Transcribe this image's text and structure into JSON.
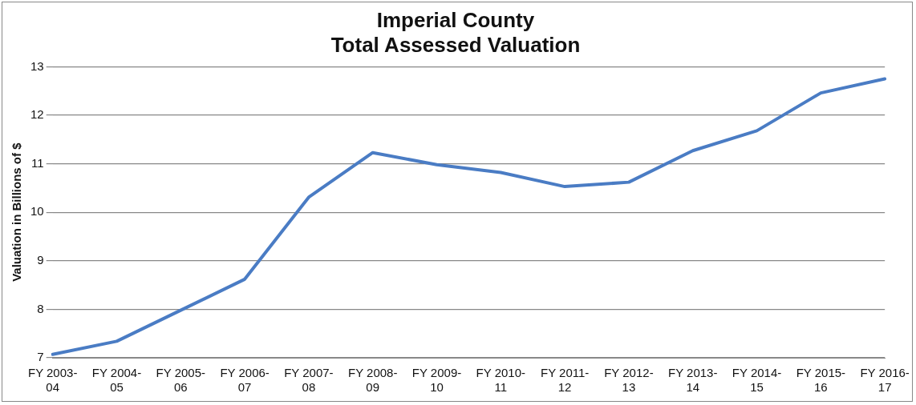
{
  "chart_data": {
    "type": "line",
    "title": "Imperial County\nTotal Assessed Valuation",
    "ylabel": "Valuation in Billions of $",
    "categories": [
      "FY 2003-04",
      "FY 2004-05",
      "FY 2005-06",
      "FY 2006-07",
      "FY 2007-08",
      "FY 2008-09",
      "FY 2009-10",
      "FY 2010-11",
      "FY 2011-12",
      "FY 2012-13",
      "FY 2013-14",
      "FY 2014-15",
      "FY 2015-16",
      "FY 2016-17"
    ],
    "series": [
      {
        "color": "#4a7cc4",
        "values": [
          7.07,
          7.34,
          7.98,
          8.62,
          10.31,
          11.23,
          10.98,
          10.82,
          10.53,
          10.62,
          11.27,
          11.68,
          12.46,
          12.75
        ]
      }
    ],
    "ylim": [
      7,
      13
    ],
    "yticks": [
      7,
      8,
      9,
      10,
      11,
      12,
      13
    ],
    "grid": "y",
    "legend": false,
    "marker": "none",
    "line_style": "solid"
  }
}
